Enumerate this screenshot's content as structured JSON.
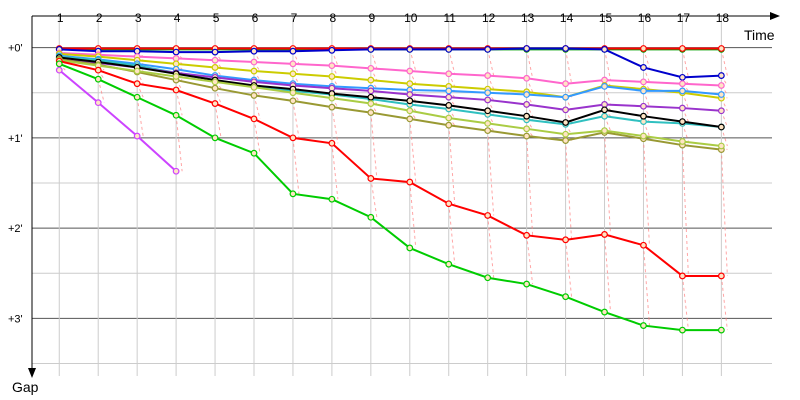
{
  "chart_data": {
    "type": "line",
    "x_axis_label": "Time",
    "y_axis_label": "Gap",
    "x_categories": [
      "1",
      "2",
      "3",
      "4",
      "5",
      "6",
      "7",
      "8",
      "9",
      "10",
      "11",
      "12",
      "13",
      "14",
      "15",
      "16",
      "17",
      "18"
    ],
    "y_tick_labels": [
      "+0'",
      "+1'",
      "+2'",
      "+3'"
    ],
    "y_ticks_minutes": [
      0,
      1,
      2,
      3
    ],
    "x_range_laps": [
      0.3,
      19.3
    ],
    "y_range_minutes": [
      -0.35,
      3.55
    ],
    "grid": true,
    "series": [
      {
        "color": "#00a000",
        "values": [
          0.02,
          0.02,
          0.02,
          0.02,
          0.02,
          0.02,
          0.02,
          0.02,
          0.02,
          0.02,
          0.02,
          0.02,
          0.02,
          0.02,
          0.02,
          0.02,
          0.02,
          0.02
        ]
      },
      {
        "color": "#ff0000",
        "values": [
          0.01,
          0.01,
          0.01,
          0.01,
          0.01,
          0.01,
          0.01,
          0.01,
          0.01,
          0.01,
          0.01,
          0.01,
          0.01,
          0.01,
          0.01,
          0.01,
          0.01,
          0.01
        ]
      },
      {
        "color": "#0000cc",
        "values": [
          0.02,
          0.04,
          0.04,
          0.05,
          0.05,
          0.04,
          0.04,
          0.03,
          0.02,
          0.02,
          0.02,
          0.02,
          0.01,
          0.01,
          0.02,
          0.22,
          0.33,
          0.31
        ]
      },
      {
        "color": "#ff66cc",
        "values": [
          0.06,
          0.08,
          0.1,
          0.12,
          0.14,
          0.16,
          0.18,
          0.2,
          0.23,
          0.26,
          0.29,
          0.31,
          0.34,
          0.4,
          0.36,
          0.38,
          0.4,
          0.42
        ]
      },
      {
        "color": "#cccc00",
        "values": [
          0.07,
          0.1,
          0.14,
          0.18,
          0.22,
          0.26,
          0.29,
          0.32,
          0.36,
          0.4,
          0.43,
          0.46,
          0.49,
          0.55,
          0.42,
          0.46,
          0.5,
          0.56
        ]
      },
      {
        "color": "#3399ff",
        "values": [
          0.09,
          0.13,
          0.18,
          0.24,
          0.31,
          0.36,
          0.4,
          0.43,
          0.45,
          0.47,
          0.48,
          0.5,
          0.52,
          0.55,
          0.43,
          0.48,
          0.48,
          0.52
        ]
      },
      {
        "color": "#30c0c0",
        "values": [
          0.1,
          0.14,
          0.2,
          0.28,
          0.36,
          0.43,
          0.48,
          0.52,
          0.57,
          0.63,
          0.68,
          0.74,
          0.8,
          0.85,
          0.76,
          0.82,
          0.84,
          0.88
        ]
      },
      {
        "color": "#9933cc",
        "values": [
          0.12,
          0.17,
          0.22,
          0.28,
          0.33,
          0.38,
          0.42,
          0.45,
          0.48,
          0.52,
          0.55,
          0.58,
          0.63,
          0.69,
          0.63,
          0.65,
          0.67,
          0.7
        ]
      },
      {
        "color": "#000000",
        "values": [
          0.11,
          0.16,
          0.22,
          0.29,
          0.36,
          0.42,
          0.46,
          0.51,
          0.55,
          0.59,
          0.64,
          0.7,
          0.76,
          0.83,
          0.69,
          0.76,
          0.82,
          0.88
        ]
      },
      {
        "color": "#999933",
        "values": [
          0.13,
          0.19,
          0.27,
          0.36,
          0.45,
          0.53,
          0.59,
          0.66,
          0.72,
          0.79,
          0.86,
          0.92,
          0.98,
          1.03,
          0.94,
          1.01,
          1.08,
          1.13
        ]
      },
      {
        "color": "#aacc44",
        "values": [
          0.14,
          0.2,
          0.26,
          0.32,
          0.38,
          0.44,
          0.5,
          0.56,
          0.62,
          0.7,
          0.78,
          0.84,
          0.9,
          0.96,
          0.92,
          0.98,
          1.04,
          1.09
        ]
      },
      {
        "color": "#ff0000",
        "values": [
          0.15,
          0.25,
          0.4,
          0.47,
          0.62,
          0.79,
          1.0,
          1.06,
          1.45,
          1.49,
          1.73,
          1.86,
          2.08,
          2.13,
          2.07,
          2.19,
          2.53,
          2.53
        ]
      },
      {
        "color": "#00cc00",
        "values": [
          0.18,
          0.35,
          0.55,
          0.75,
          1.0,
          1.17,
          1.62,
          1.68,
          1.88,
          2.22,
          2.4,
          2.55,
          2.62,
          2.76,
          2.93,
          3.08,
          3.13,
          3.13
        ]
      },
      {
        "color": "#cc44ff",
        "values": [
          0.25,
          0.61,
          0.98,
          1.37
        ]
      }
    ]
  }
}
